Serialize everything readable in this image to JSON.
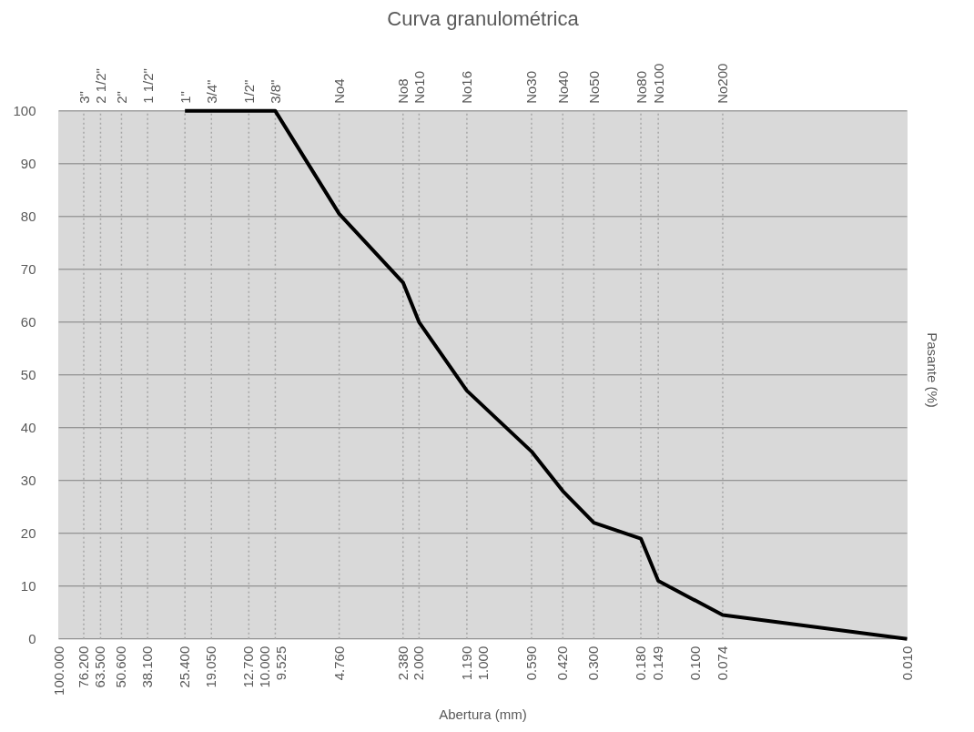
{
  "chart_data": {
    "type": "line",
    "title": "Curva granulométrica",
    "xlabel": "Abertura (mm)",
    "ylabel": "Pasante (%)",
    "log": "x",
    "grid": "y",
    "color": "#000000",
    "line_style": "solid",
    "marker": "none",
    "x": [
      25.4,
      19.05,
      12.7,
      9.525,
      4.76,
      2.38,
      2.0,
      1.19,
      0.59,
      0.42,
      0.3,
      0.18,
      0.149,
      0.074,
      0.01
    ],
    "values": [
      100,
      100,
      100,
      100,
      80.5,
      67.5,
      60,
      47,
      35.5,
      28,
      22,
      19,
      11,
      4.5,
      0
    ],
    "xlim": [
      100,
      0.01
    ],
    "ylim": [
      0,
      100
    ],
    "yticks": [
      0,
      10,
      20,
      30,
      40,
      50,
      60,
      70,
      80,
      90,
      100
    ],
    "xticks": [
      {
        "value": 100,
        "label": "100.000"
      },
      {
        "value": 76.2,
        "label": "76.200"
      },
      {
        "value": 63.5,
        "label": "63.500"
      },
      {
        "value": 50.6,
        "label": "50.600"
      },
      {
        "value": 38.1,
        "label": "38.100"
      },
      {
        "value": 25.4,
        "label": "25.400"
      },
      {
        "value": 19.05,
        "label": "19.050"
      },
      {
        "value": 12.7,
        "label": "12.700"
      },
      {
        "value": 10,
        "label": "10.000"
      },
      {
        "value": 9.525,
        "label": "9.525"
      },
      {
        "value": 4.76,
        "label": "4.760"
      },
      {
        "value": 2.38,
        "label": "2.380"
      },
      {
        "value": 2.0,
        "label": "2.000"
      },
      {
        "value": 1.19,
        "label": "1.190"
      },
      {
        "value": 1,
        "label": "1.000"
      },
      {
        "value": 0.59,
        "label": "0.590"
      },
      {
        "value": 0.42,
        "label": "0.420"
      },
      {
        "value": 0.3,
        "label": "0.300"
      },
      {
        "value": 0.18,
        "label": "0.180"
      },
      {
        "value": 0.149,
        "label": "0.149"
      },
      {
        "value": 0.1,
        "label": "0.100"
      },
      {
        "value": 0.074,
        "label": "0.074"
      },
      {
        "value": 0.01,
        "label": "0.010"
      }
    ],
    "annotations": [
      {
        "text": "3\"",
        "x": 76.2,
        "y": 100
      },
      {
        "text": "2 1/2\"",
        "x": 63.5,
        "y": 100
      },
      {
        "text": "2\"",
        "x": 50.6,
        "y": 100
      },
      {
        "text": "1 1/2\"",
        "x": 38.1,
        "y": 100
      },
      {
        "text": "1\"",
        "x": 25.4,
        "y": 100
      },
      {
        "text": "3/4\"",
        "x": 19.05,
        "y": 100
      },
      {
        "text": "1/2\"",
        "x": 12.7,
        "y": 100
      },
      {
        "text": "3/8\"",
        "x": 9.525,
        "y": 100
      },
      {
        "text": "No4",
        "x": 4.76,
        "y": 100
      },
      {
        "text": "No8",
        "x": 2.38,
        "y": 100
      },
      {
        "text": "No10",
        "x": 2.0,
        "y": 100
      },
      {
        "text": "No16",
        "x": 1.19,
        "y": 100
      },
      {
        "text": "No30",
        "x": 0.59,
        "y": 100
      },
      {
        "text": "No40",
        "x": 0.42,
        "y": 100
      },
      {
        "text": "No50",
        "x": 0.3,
        "y": 100
      },
      {
        "text": "No80",
        "x": 0.18,
        "y": 100
      },
      {
        "text": "No100",
        "x": 0.149,
        "y": 100
      },
      {
        "text": "No200",
        "x": 0.074,
        "y": 100
      }
    ],
    "ref_lines": [
      {
        "axis": "x",
        "value": 76.2,
        "line_style": "dotted",
        "color": "#a6a6a6"
      },
      {
        "axis": "x",
        "value": 63.5,
        "line_style": "dotted",
        "color": "#a6a6a6"
      },
      {
        "axis": "x",
        "value": 50.6,
        "line_style": "dotted",
        "color": "#a6a6a6"
      },
      {
        "axis": "x",
        "value": 38.1,
        "line_style": "dotted",
        "color": "#a6a6a6"
      },
      {
        "axis": "x",
        "value": 25.4,
        "line_style": "dotted",
        "color": "#a6a6a6"
      },
      {
        "axis": "x",
        "value": 19.05,
        "line_style": "dotted",
        "color": "#a6a6a6"
      },
      {
        "axis": "x",
        "value": 12.7,
        "line_style": "dotted",
        "color": "#a6a6a6"
      },
      {
        "axis": "x",
        "value": 9.525,
        "line_style": "dotted",
        "color": "#a6a6a6"
      },
      {
        "axis": "x",
        "value": 4.76,
        "line_style": "dotted",
        "color": "#a6a6a6"
      },
      {
        "axis": "x",
        "value": 2.38,
        "line_style": "dotted",
        "color": "#a6a6a6"
      },
      {
        "axis": "x",
        "value": 2.0,
        "line_style": "dotted",
        "color": "#a6a6a6"
      },
      {
        "axis": "x",
        "value": 1.19,
        "line_style": "dotted",
        "color": "#a6a6a6"
      },
      {
        "axis": "x",
        "value": 0.59,
        "line_style": "dotted",
        "color": "#a6a6a6"
      },
      {
        "axis": "x",
        "value": 0.42,
        "line_style": "dotted",
        "color": "#a6a6a6"
      },
      {
        "axis": "x",
        "value": 0.3,
        "line_style": "dotted",
        "color": "#a6a6a6"
      },
      {
        "axis": "x",
        "value": 0.18,
        "line_style": "dotted",
        "color": "#a6a6a6"
      },
      {
        "axis": "x",
        "value": 0.149,
        "line_style": "dotted",
        "color": "#a6a6a6"
      },
      {
        "axis": "x",
        "value": 0.074,
        "line_style": "dotted",
        "color": "#a6a6a6"
      }
    ]
  }
}
